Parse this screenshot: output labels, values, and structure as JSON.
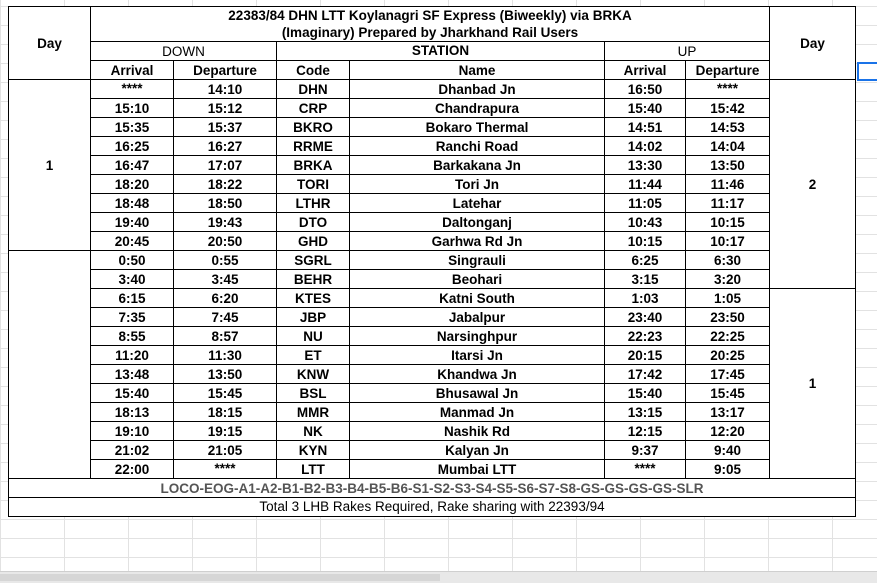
{
  "title_line1": "22383/84 DHN LTT Koylanagri SF Express (Biweekly) via BRKA",
  "title_line2": "(Imaginary) Prepared by Jharkhand Rail Users",
  "day_header": "Day",
  "down_label": "DOWN",
  "up_label": "UP",
  "station_label": "STATION",
  "cols": {
    "arrival": "Arrival",
    "departure": "Departure",
    "code": "Code",
    "name": "Name"
  },
  "down_days": [
    "1",
    ""
  ],
  "up_days": [
    "2",
    "1"
  ],
  "rows": [
    {
      "da": "****",
      "dd": "14:10",
      "code": "DHN",
      "name": "Dhanbad Jn",
      "ua": "16:50",
      "ud": "****"
    },
    {
      "da": "15:10",
      "dd": "15:12",
      "code": "CRP",
      "name": "Chandrapura",
      "ua": "15:40",
      "ud": "15:42"
    },
    {
      "da": "15:35",
      "dd": "15:37",
      "code": "BKRO",
      "name": "Bokaro Thermal",
      "ua": "14:51",
      "ud": "14:53"
    },
    {
      "da": "16:25",
      "dd": "16:27",
      "code": "RRME",
      "name": "Ranchi Road",
      "ua": "14:02",
      "ud": "14:04"
    },
    {
      "da": "16:47",
      "dd": "17:07",
      "code": "BRKA",
      "name": "Barkakana Jn",
      "ua": "13:30",
      "ud": "13:50"
    },
    {
      "da": "18:20",
      "dd": "18:22",
      "code": "TORI",
      "name": "Tori Jn",
      "ua": "11:44",
      "ud": "11:46"
    },
    {
      "da": "18:48",
      "dd": "18:50",
      "code": "LTHR",
      "name": "Latehar",
      "ua": "11:05",
      "ud": "11:17"
    },
    {
      "da": "19:40",
      "dd": "19:43",
      "code": "DTO",
      "name": "Daltonganj",
      "ua": "10:43",
      "ud": "10:15"
    },
    {
      "da": "20:45",
      "dd": "20:50",
      "code": "GHD",
      "name": "Garhwa Rd Jn",
      "ua": "10:15",
      "ud": "10:17"
    },
    {
      "da": "0:50",
      "dd": "0:55",
      "code": "SGRL",
      "name": "Singrauli",
      "ua": "6:25",
      "ud": "6:30"
    },
    {
      "da": "3:40",
      "dd": "3:45",
      "code": "BEHR",
      "name": "Beohari",
      "ua": "3:15",
      "ud": "3:20"
    },
    {
      "da": "6:15",
      "dd": "6:20",
      "code": "KTES",
      "name": "Katni South",
      "ua": "1:03",
      "ud": "1:05"
    },
    {
      "da": "7:35",
      "dd": "7:45",
      "code": "JBP",
      "name": "Jabalpur",
      "ua": "23:40",
      "ud": "23:50"
    },
    {
      "da": "8:55",
      "dd": "8:57",
      "code": "NU",
      "name": "Narsinghpur",
      "ua": "22:23",
      "ud": "22:25"
    },
    {
      "da": "11:20",
      "dd": "11:30",
      "code": "ET",
      "name": "Itarsi Jn",
      "ua": "20:15",
      "ud": "20:25"
    },
    {
      "da": "13:48",
      "dd": "13:50",
      "code": "KNW",
      "name": "Khandwa Jn",
      "ua": "17:42",
      "ud": "17:45"
    },
    {
      "da": "15:40",
      "dd": "15:45",
      "code": "BSL",
      "name": "Bhusawal Jn",
      "ua": "15:40",
      "ud": "15:45"
    },
    {
      "da": "18:13",
      "dd": "18:15",
      "code": "MMR",
      "name": "Manmad Jn",
      "ua": "13:15",
      "ud": "13:17"
    },
    {
      "da": "19:10",
      "dd": "19:15",
      "code": "NK",
      "name": "Nashik Rd",
      "ua": "12:15",
      "ud": "12:20"
    },
    {
      "da": "21:02",
      "dd": "21:05",
      "code": "KYN",
      "name": "Kalyan Jn",
      "ua": "9:37",
      "ud": "9:40"
    },
    {
      "da": "22:00",
      "dd": "****",
      "code": "LTT",
      "name": "Mumbai LTT",
      "ua": "****",
      "ud": "9:05"
    }
  ],
  "loco": "LOCO-EOG-A1-A2-B1-B2-B3-B4-B5-B6-S1-S2-S3-S4-S5-S6-S7-S8-GS-GS-GS-GS-SLR",
  "footer": "Total 3 LHB Rakes Required, Rake sharing with 22393/94"
}
